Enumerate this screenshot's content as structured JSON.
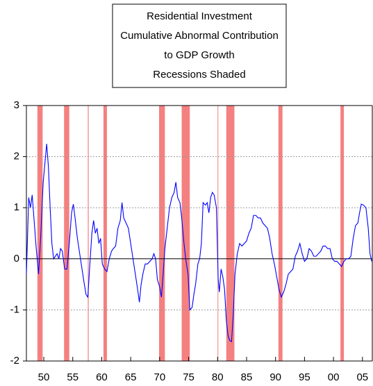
{
  "chart_data": {
    "type": "line",
    "title": [
      "Residential Investment",
      "Cumulative Abnormal Contribution",
      "to GDP Growth",
      "Recessions Shaded"
    ],
    "x": [
      1947.0,
      1947.4,
      1947.7,
      1948.0,
      1948.3,
      1948.7,
      1949.1,
      1949.5,
      1949.9,
      1950.3,
      1950.5,
      1950.8,
      1951.1,
      1951.4,
      1951.7,
      1952.0,
      1952.3,
      1952.6,
      1952.9,
      1953.2,
      1953.6,
      1954.0,
      1954.4,
      1954.8,
      1955.1,
      1955.4,
      1955.8,
      1956.2,
      1956.6,
      1957.0,
      1957.3,
      1957.6,
      1957.9,
      1958.3,
      1958.6,
      1958.9,
      1959.2,
      1959.5,
      1959.8,
      1960.1,
      1960.5,
      1960.9,
      1961.3,
      1961.7,
      1962.0,
      1962.4,
      1962.8,
      1963.2,
      1963.5,
      1963.8,
      1964.2,
      1964.6,
      1965.0,
      1965.4,
      1965.8,
      1966.2,
      1966.5,
      1966.8,
      1967.1,
      1967.5,
      1967.9,
      1968.3,
      1968.7,
      1969.0,
      1969.3,
      1969.6,
      1970.0,
      1970.3,
      1970.6,
      1970.9,
      1971.3,
      1971.7,
      1972.1,
      1972.5,
      1972.8,
      1973.1,
      1973.5,
      1973.8,
      1974.2,
      1974.5,
      1974.9,
      1975.2,
      1975.6,
      1975.9,
      1976.2,
      1976.6,
      1976.9,
      1977.2,
      1977.5,
      1977.9,
      1978.2,
      1978.5,
      1978.8,
      1979.1,
      1979.4,
      1979.8,
      1980.1,
      1980.3,
      1980.6,
      1980.9,
      1981.2,
      1981.5,
      1981.8,
      1982.1,
      1982.4,
      1982.7,
      1983.0,
      1983.4,
      1983.8,
      1984.2,
      1984.6,
      1985.0,
      1985.4,
      1985.8,
      1986.2,
      1986.6,
      1987.0,
      1987.4,
      1987.8,
      1988.2,
      1988.6,
      1989.0,
      1989.4,
      1989.8,
      1990.2,
      1990.6,
      1991.0,
      1991.4,
      1991.8,
      1992.2,
      1992.6,
      1993.0,
      1993.4,
      1993.8,
      1994.2,
      1994.6,
      1995.0,
      1995.4,
      1995.8,
      1996.2,
      1996.6,
      1997.0,
      1997.4,
      1997.8,
      1998.2,
      1998.6,
      1999.0,
      1999.4,
      1999.8,
      2000.2,
      2000.6,
      2001.0,
      2001.4,
      2001.8,
      2002.2,
      2002.6,
      2003.0,
      2003.4,
      2003.8,
      2004.2,
      2004.5,
      2004.8,
      2005.2,
      2005.6,
      2006.0,
      2006.3,
      2006.6
    ],
    "series": [
      {
        "color": "#0000ff",
        "values": [
          -0.3,
          1.2,
          1.0,
          1.25,
          0.8,
          0.2,
          -0.3,
          0.5,
          1.5,
          2.0,
          2.25,
          1.8,
          1.0,
          0.3,
          0.0,
          0.05,
          0.1,
          0.0,
          0.2,
          0.15,
          -0.2,
          -0.2,
          0.3,
          0.9,
          1.07,
          0.8,
          0.4,
          0.1,
          -0.2,
          -0.5,
          -0.7,
          -0.75,
          -0.2,
          0.5,
          0.75,
          0.5,
          0.6,
          0.3,
          0.4,
          -0.1,
          -0.2,
          -0.25,
          0.0,
          0.15,
          0.2,
          0.25,
          0.6,
          0.75,
          1.1,
          0.8,
          0.7,
          0.6,
          0.3,
          0.0,
          -0.3,
          -0.6,
          -0.85,
          -0.5,
          -0.3,
          -0.1,
          -0.1,
          -0.05,
          0.0,
          0.1,
          0.0,
          -0.4,
          -0.55,
          -0.75,
          -0.3,
          0.2,
          0.6,
          1.0,
          1.2,
          1.3,
          1.5,
          1.2,
          1.1,
          0.8,
          0.3,
          0.0,
          -0.3,
          -1.0,
          -0.95,
          -0.7,
          -0.5,
          -0.1,
          0.0,
          0.3,
          1.1,
          1.05,
          1.1,
          0.9,
          1.2,
          1.3,
          1.25,
          1.0,
          -0.4,
          -0.65,
          -0.2,
          -0.35,
          -0.6,
          -1.2,
          -1.5,
          -1.6,
          -1.62,
          -1.1,
          -0.3,
          0.1,
          0.3,
          0.25,
          0.3,
          0.35,
          0.5,
          0.6,
          0.85,
          0.85,
          0.8,
          0.8,
          0.7,
          0.65,
          0.6,
          0.4,
          0.1,
          -0.1,
          -0.35,
          -0.6,
          -0.75,
          -0.65,
          -0.5,
          -0.3,
          -0.25,
          -0.2,
          0.05,
          0.15,
          0.3,
          0.1,
          -0.05,
          0.0,
          0.2,
          0.15,
          0.05,
          0.05,
          0.1,
          0.15,
          0.25,
          0.25,
          0.2,
          0.2,
          0.0,
          -0.05,
          -0.05,
          -0.1,
          -0.15,
          -0.05,
          0.0,
          0.0,
          0.05,
          0.4,
          0.65,
          0.7,
          0.9,
          1.07,
          1.05,
          1.0,
          0.6,
          0.1,
          -0.05
        ]
      }
    ],
    "recessions": [
      [
        1948.9,
        1949.8
      ],
      [
        1953.5,
        1954.4
      ],
      [
        1957.6,
        1957.75
      ],
      [
        1960.3,
        1960.9
      ],
      [
        1969.9,
        1970.9
      ],
      [
        1973.8,
        1975.2
      ],
      [
        1980.0,
        1980.1
      ],
      [
        1981.5,
        1982.9
      ],
      [
        1990.5,
        1991.2
      ],
      [
        2001.2,
        2001.8
      ]
    ],
    "recession_color": "#f48080",
    "xlim": [
      1947,
      2006.7
    ],
    "ylim": [
      -2,
      3
    ],
    "xticks": [
      {
        "value": 1950,
        "label": "50"
      },
      {
        "value": 1955,
        "label": "55"
      },
      {
        "value": 1960,
        "label": "60"
      },
      {
        "value": 1965,
        "label": "65"
      },
      {
        "value": 1970,
        "label": "70"
      },
      {
        "value": 1975,
        "label": "75"
      },
      {
        "value": 1980,
        "label": "80"
      },
      {
        "value": 1985,
        "label": "85"
      },
      {
        "value": 1990,
        "label": "90"
      },
      {
        "value": 1995,
        "label": "95"
      },
      {
        "value": 2000,
        "label": "00"
      },
      {
        "value": 2005,
        "label": "05"
      }
    ],
    "yticks": [
      -2,
      -1,
      0,
      1,
      2,
      3
    ],
    "grid": true
  }
}
